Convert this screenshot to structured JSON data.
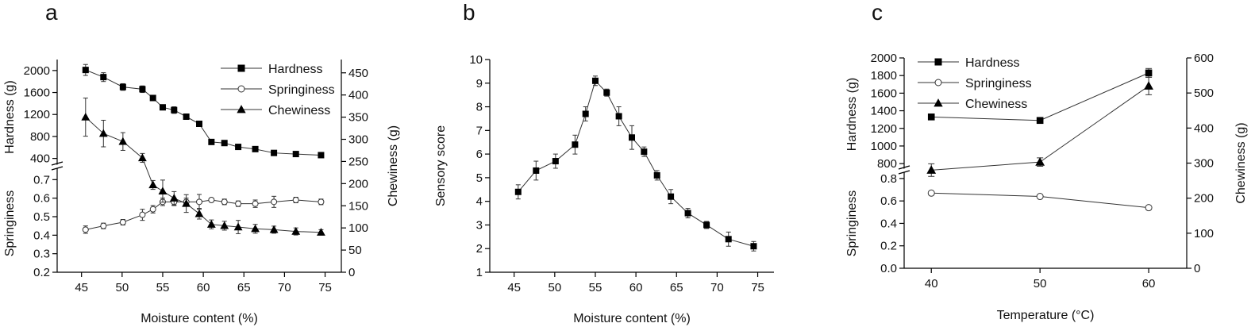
{
  "panel_letters": {
    "a": "a",
    "b": "b",
    "c": "c"
  },
  "chart_data": [
    {
      "type": "line",
      "panel": "a",
      "xlabel": "Moisture content (%)",
      "x_ticks": [
        45,
        50,
        55,
        60,
        65,
        70,
        75
      ],
      "xlim": [
        42,
        77
      ],
      "y_left_top_label": "Hardness (g)",
      "y_left_top_ticks": [
        400,
        800,
        1200,
        1600,
        2000
      ],
      "y_left_top_range": [
        250,
        2200
      ],
      "y_left_bottom_label": "Springiness",
      "y_left_bottom_ticks": [
        0.2,
        0.3,
        0.4,
        0.5,
        0.6,
        0.7
      ],
      "y_left_bottom_range": [
        0.2,
        0.77
      ],
      "y_right_label": "Chewiness (g)",
      "y_right_ticks": [
        0,
        50,
        100,
        150,
        200,
        250,
        300,
        350,
        400,
        450
      ],
      "y_right_range": [
        0,
        480
      ],
      "legend": [
        "Hardness",
        "Springiness",
        "Chewiness"
      ],
      "legend_position": "top-right",
      "series": [
        {
          "name": "Hardness",
          "marker": "square",
          "x": [
            45.5,
            47.7,
            50.1,
            52.5,
            53.8,
            55.0,
            56.4,
            57.9,
            59.5,
            61.0,
            62.6,
            64.3,
            66.4,
            68.7,
            71.4,
            74.5
          ],
          "y": [
            2010,
            1880,
            1700,
            1660,
            1500,
            1330,
            1280,
            1160,
            1030,
            700,
            680,
            610,
            570,
            500,
            480,
            460
          ],
          "err": [
            100,
            80,
            60,
            60,
            30,
            40,
            60,
            30,
            40,
            40,
            30,
            20,
            20,
            15,
            15,
            15
          ]
        },
        {
          "name": "Springiness",
          "marker": "circle",
          "x": [
            45.5,
            47.7,
            50.1,
            52.5,
            53.8,
            55.0,
            56.4,
            57.9,
            59.5,
            61.0,
            62.6,
            64.3,
            66.4,
            68.7,
            71.4,
            74.5
          ],
          "y": [
            0.43,
            0.45,
            0.47,
            0.51,
            0.54,
            0.58,
            0.58,
            0.58,
            0.58,
            0.59,
            0.58,
            0.57,
            0.57,
            0.58,
            0.59,
            0.58
          ],
          "err": [
            0.02,
            0.015,
            0.015,
            0.03,
            0.02,
            0.02,
            0.02,
            0.02,
            0.04,
            0.01,
            0.015,
            0.015,
            0.02,
            0.03,
            0.015,
            0.015
          ]
        },
        {
          "name": "Chewiness",
          "marker": "triangle",
          "x": [
            45.5,
            47.7,
            50.1,
            52.5,
            53.8,
            55.0,
            56.4,
            57.9,
            59.5,
            61.0,
            62.6,
            64.3,
            66.4,
            68.7,
            71.4,
            74.5
          ],
          "y": [
            350,
            313,
            295,
            258,
            197,
            183,
            167,
            155,
            132,
            108,
            105,
            102,
            98,
            96,
            92,
            90
          ],
          "err": [
            43,
            30,
            20,
            10,
            10,
            25,
            15,
            20,
            12,
            10,
            10,
            15,
            10,
            8,
            8,
            6
          ]
        }
      ]
    },
    {
      "type": "line",
      "panel": "b",
      "xlabel": "Moisture content (%)",
      "ylabel": "Sensory score",
      "x_ticks": [
        45,
        50,
        55,
        60,
        65,
        70,
        75
      ],
      "xlim": [
        42,
        77
      ],
      "y_ticks": [
        1,
        2,
        3,
        4,
        5,
        6,
        7,
        8,
        9,
        10
      ],
      "ylim": [
        1,
        10
      ],
      "series": [
        {
          "marker": "square",
          "x": [
            45.5,
            47.7,
            50.1,
            52.5,
            53.8,
            55.0,
            56.4,
            57.9,
            59.5,
            61.0,
            62.6,
            64.3,
            66.4,
            68.7,
            71.4,
            74.5
          ],
          "y": [
            4.4,
            5.3,
            5.7,
            6.4,
            7.7,
            9.1,
            8.6,
            7.6,
            6.7,
            6.1,
            5.1,
            4.2,
            3.5,
            3.0,
            2.4,
            2.1
          ],
          "err": [
            0.3,
            0.4,
            0.3,
            0.4,
            0.3,
            0.2,
            0.15,
            0.4,
            0.5,
            0.2,
            0.2,
            0.3,
            0.2,
            0.15,
            0.3,
            0.2
          ]
        }
      ]
    },
    {
      "type": "line",
      "panel": "c",
      "xlabel": "Temperature (°C)",
      "x_ticks": [
        40,
        50,
        60
      ],
      "xlim": [
        37.5,
        63.5
      ],
      "y_left_top_label": "Hardness (g)",
      "y_left_top_ticks": [
        800,
        1000,
        1200,
        1400,
        1600,
        1800,
        2000
      ],
      "y_left_top_range": [
        720,
        2000
      ],
      "y_left_bottom_label": "Springiness",
      "y_left_bottom_ticks": [
        0.0,
        0.2,
        0.4,
        0.6,
        0.8
      ],
      "y_left_bottom_range": [
        0,
        0.87
      ],
      "y_right_label": "Chewiness (g)",
      "y_right_ticks": [
        0,
        100,
        200,
        300,
        400,
        500,
        600
      ],
      "y_right_range": [
        0,
        600
      ],
      "legend": [
        "Hardness",
        "Springiness",
        "Chewiness"
      ],
      "legend_position": "top-left",
      "series": [
        {
          "name": "Hardness",
          "marker": "square",
          "x": [
            40,
            50,
            60
          ],
          "y": [
            1330,
            1290,
            1830
          ],
          "err": [
            30,
            30,
            50
          ]
        },
        {
          "name": "Springiness",
          "marker": "circle",
          "x": [
            40,
            50,
            60
          ],
          "y": [
            0.67,
            0.64,
            0.54
          ],
          "err": [
            0,
            0,
            0
          ]
        },
        {
          "name": "Chewiness",
          "marker": "triangle",
          "x": [
            40,
            50,
            60
          ],
          "y": [
            280,
            303,
            520
          ],
          "err": [
            18,
            12,
            25
          ]
        }
      ]
    }
  ]
}
